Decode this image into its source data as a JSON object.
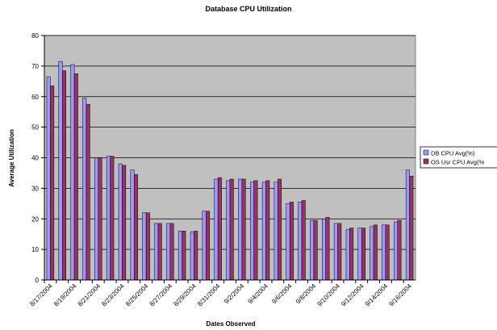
{
  "chart_data": {
    "type": "bar",
    "title": "Database CPU Utilization",
    "x_label": "Dates Observed",
    "y_label": "Average Utilization",
    "categories": [
      "8/17/2004",
      null,
      "8/19/2004",
      null,
      "8/21/2004",
      null,
      "8/23/2004",
      null,
      "8/25/2004",
      null,
      "8/27/2004",
      null,
      "8/29/2004",
      null,
      "8/31/2004",
      null,
      "9/2/2004",
      null,
      "9/4/2004",
      null,
      "9/6/2004",
      null,
      "9/8/2004",
      null,
      "9/10/2004",
      null,
      "9/12/2004",
      null,
      "9/14/2004",
      null,
      "9/16/2004"
    ],
    "series": [
      {
        "name": "DB CPU Avg(%)",
        "color": "#9999ff",
        "values": [
          66.5,
          71.5,
          70.5,
          59.5,
          40,
          40.5,
          38,
          36,
          22,
          18.5,
          18.5,
          16,
          15.8,
          22.5,
          33,
          32.5,
          33,
          32,
          32,
          32,
          25,
          25.5,
          19.5,
          20,
          18.5,
          16.5,
          17,
          17.5,
          18,
          19,
          36
        ]
      },
      {
        "name": "OS Usr CPU Avg(%",
        "color": "#993366",
        "values": [
          63.5,
          68.5,
          67.5,
          57.5,
          40,
          40.5,
          37.5,
          34.5,
          22,
          18.5,
          18.5,
          16,
          16,
          22.5,
          33.5,
          33,
          33,
          32.5,
          32.5,
          33,
          25.5,
          26,
          19.5,
          20.5,
          18.5,
          17,
          17,
          18,
          18,
          19.5,
          34
        ]
      }
    ],
    "ylim": [
      0,
      80
    ],
    "yticks": [
      0,
      10,
      20,
      30,
      40,
      50,
      60,
      70,
      80
    ],
    "grid": true,
    "legend": "right"
  }
}
